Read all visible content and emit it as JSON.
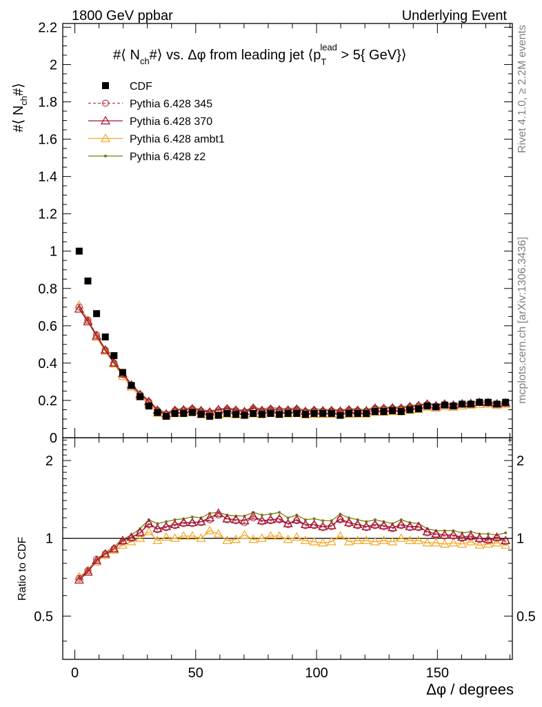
{
  "header": {
    "left_text": "1800 GeV ppbar",
    "right_text": "Underlying Event"
  },
  "side": {
    "rivet_text": "Rivet 4.1.0, ≥ 2.2M events",
    "mcplots_text": "mcplots.cern.ch [arXiv:1306.3436]"
  },
  "chart_data": [
    {
      "type": "scatter",
      "panel": "main",
      "title": "#⟨ N_ch#⟩ vs. Δφ from leading jet  ⟨p_T^lead > 5{ GeV}⟩",
      "title_parts": {
        "prefix": "#⟨ N",
        "sub1": "ch",
        "mid": "#⟩ vs. Δφ from leading jet  ⟨p",
        "sub2": "T",
        "sup2": "lead",
        "suffix": " > 5{ GeV}⟩"
      },
      "ylabel": "#⟨ N_ch#⟩",
      "ylabel_parts": {
        "prefix": "#⟨ N",
        "sub": "ch",
        "suffix": "#⟩"
      },
      "xlim": [
        -5,
        181
      ],
      "ylim": [
        0,
        2.22
      ],
      "yticks": [
        0,
        0.2,
        0.4,
        0.6,
        0.8,
        1,
        1.2,
        1.4,
        1.6,
        1.8,
        2,
        2.2
      ],
      "ytick_labels": [
        "0",
        "0.2",
        "0.4",
        "0.6",
        "0.8",
        "1",
        "1.2",
        "1.4",
        "1.6",
        "1.8",
        "2",
        "2.2"
      ],
      "legend_position": "top-left",
      "x": [
        1.8,
        5.4,
        9.0,
        12.6,
        16.2,
        19.8,
        23.4,
        27.0,
        30.6,
        34.2,
        37.8,
        41.4,
        45.0,
        48.6,
        52.2,
        55.8,
        59.4,
        63.0,
        66.6,
        70.2,
        73.8,
        77.4,
        81.0,
        84.6,
        88.2,
        91.8,
        95.4,
        99.0,
        102.6,
        106.2,
        109.8,
        113.4,
        117.0,
        120.6,
        124.2,
        127.8,
        131.4,
        135.0,
        138.6,
        142.2,
        145.8,
        149.4,
        153.0,
        156.6,
        160.2,
        163.8,
        167.4,
        171.0,
        174.6,
        178.2
      ],
      "series": [
        {
          "name": "CDF",
          "color": "#000000",
          "marker": "square",
          "line": "none",
          "values": [
            1.0,
            0.84,
            0.665,
            0.54,
            0.44,
            0.35,
            0.28,
            0.22,
            0.17,
            0.135,
            0.115,
            0.13,
            0.13,
            0.135,
            0.125,
            0.115,
            0.12,
            0.13,
            0.125,
            0.12,
            0.13,
            0.125,
            0.13,
            0.125,
            0.13,
            0.13,
            0.125,
            0.13,
            0.13,
            0.13,
            0.12,
            0.13,
            0.13,
            0.13,
            0.14,
            0.14,
            0.145,
            0.14,
            0.15,
            0.155,
            0.17,
            0.165,
            0.175,
            0.17,
            0.18,
            0.18,
            0.19,
            0.19,
            0.18,
            0.19
          ]
        },
        {
          "name": "Pythia 6.428 345",
          "color": "#c0384b",
          "marker": "open-circle",
          "line": "dashed",
          "ratio": [
            0.7,
            0.75,
            0.83,
            0.87,
            0.91,
            0.97,
            1.0,
            1.05,
            1.13,
            1.08,
            1.1,
            1.12,
            1.14,
            1.14,
            1.15,
            1.18,
            1.23,
            1.18,
            1.17,
            1.15,
            1.2,
            1.16,
            1.17,
            1.18,
            1.13,
            1.17,
            1.12,
            1.12,
            1.1,
            1.11,
            1.18,
            1.14,
            1.12,
            1.1,
            1.12,
            1.11,
            1.09,
            1.12,
            1.1,
            1.1,
            1.05,
            1.03,
            1.02,
            1.02,
            1.0,
            1.01,
            0.99,
            0.98,
            1.0,
            0.97
          ]
        },
        {
          "name": "Pythia 6.428 370",
          "color": "#a01030",
          "marker": "open-triangle",
          "line": "solid",
          "ratio": [
            0.69,
            0.74,
            0.82,
            0.87,
            0.91,
            0.98,
            1.01,
            1.05,
            1.14,
            1.09,
            1.11,
            1.13,
            1.15,
            1.15,
            1.16,
            1.2,
            1.25,
            1.19,
            1.18,
            1.17,
            1.22,
            1.17,
            1.18,
            1.19,
            1.14,
            1.18,
            1.13,
            1.13,
            1.11,
            1.12,
            1.19,
            1.15,
            1.13,
            1.11,
            1.13,
            1.12,
            1.1,
            1.13,
            1.11,
            1.11,
            1.06,
            1.04,
            1.03,
            1.03,
            1.01,
            1.02,
            1.0,
            0.99,
            1.01,
            0.98
          ]
        },
        {
          "name": "Pythia 6.428 ambt1",
          "color": "#f5a623",
          "marker": "open-triangle",
          "line": "solid",
          "ratio": [
            0.71,
            0.75,
            0.81,
            0.86,
            0.9,
            0.94,
            0.97,
            1.0,
            1.06,
            0.98,
            1.01,
            1.0,
            1.02,
            1.02,
            1.0,
            1.07,
            1.04,
            0.98,
            0.99,
            1.03,
            0.99,
            1.0,
            1.02,
            1.02,
            0.99,
            1.01,
            0.98,
            0.97,
            0.96,
            0.97,
            1.02,
            0.97,
            0.98,
            0.98,
            0.97,
            0.98,
            0.97,
            1.0,
            0.98,
            0.98,
            0.96,
            0.96,
            0.95,
            0.96,
            0.95,
            0.97,
            0.94,
            0.95,
            0.96,
            0.94
          ]
        },
        {
          "name": "Pythia 6.428 z2",
          "color": "#7a7a10",
          "marker": "small-dot",
          "line": "solid",
          "ratio": [
            0.7,
            0.75,
            0.83,
            0.88,
            0.93,
            0.99,
            1.03,
            1.09,
            1.18,
            1.14,
            1.16,
            1.18,
            1.19,
            1.21,
            1.2,
            1.25,
            1.26,
            1.23,
            1.22,
            1.22,
            1.26,
            1.23,
            1.24,
            1.26,
            1.2,
            1.23,
            1.18,
            1.19,
            1.17,
            1.17,
            1.24,
            1.2,
            1.18,
            1.16,
            1.18,
            1.16,
            1.14,
            1.18,
            1.15,
            1.14,
            1.09,
            1.07,
            1.07,
            1.07,
            1.05,
            1.06,
            1.04,
            1.04,
            1.03,
            1.05
          ]
        }
      ]
    },
    {
      "type": "line",
      "panel": "ratio",
      "ylabel": "Ratio to CDF",
      "xlabel": "Δφ / degrees",
      "xlim": [
        -5,
        181
      ],
      "ylim": [
        0.34,
        2.45
      ],
      "yscale": "log",
      "yticks": [
        0.5,
        1,
        2
      ],
      "ytick_labels": [
        "0.5",
        "1",
        "2"
      ],
      "xticks": [
        0,
        50,
        100,
        150
      ],
      "xtick_labels": [
        "0",
        "50",
        "100",
        "150"
      ],
      "reference_line": 1
    }
  ]
}
